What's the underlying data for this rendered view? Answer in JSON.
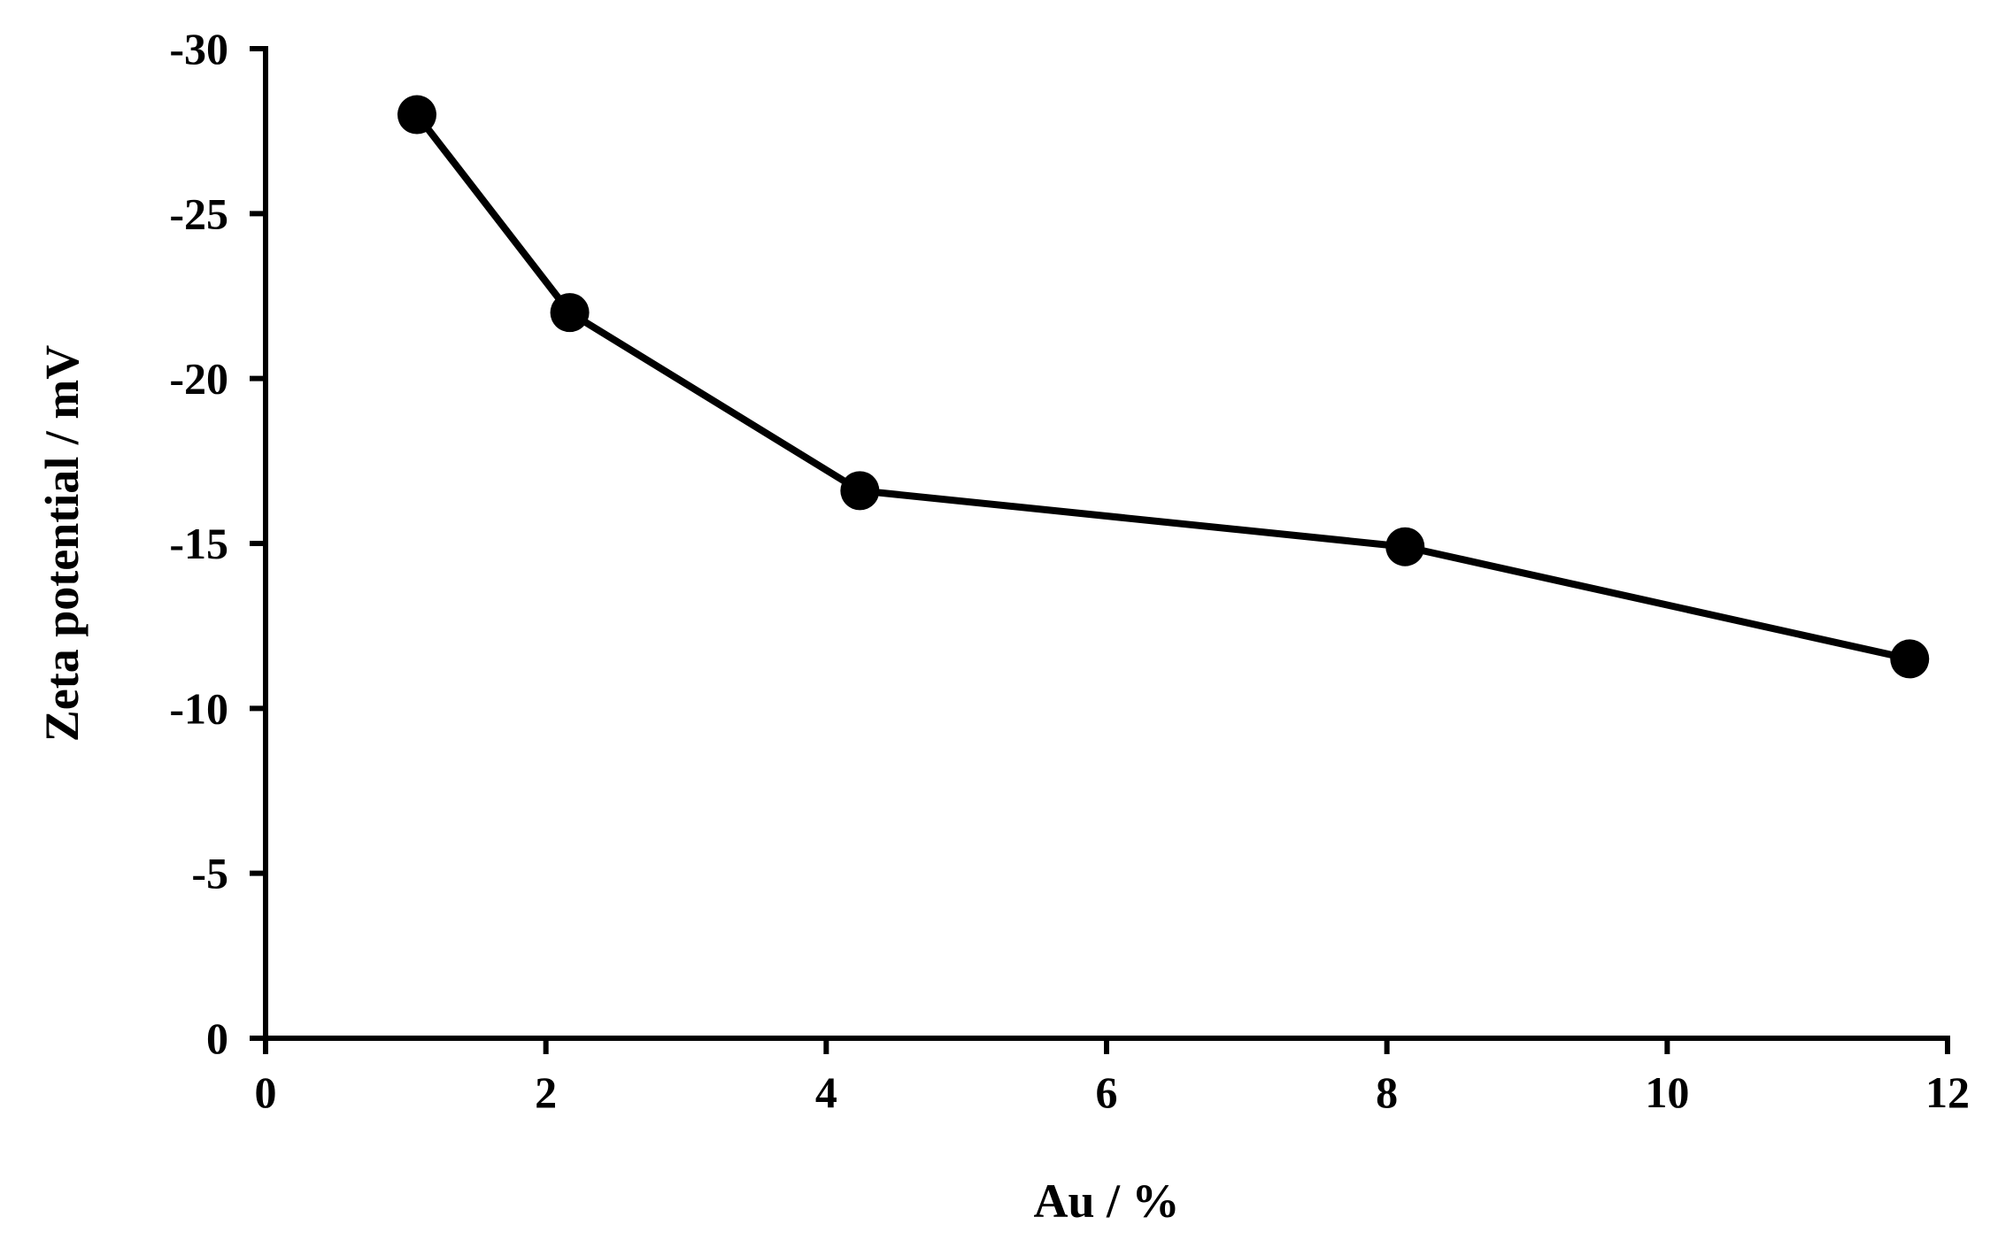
{
  "chart_data": {
    "type": "line",
    "title": "",
    "xlabel": "Au / %",
    "ylabel": "Zeta potential / mV",
    "xlim": [
      0,
      12
    ],
    "ylim": [
      0,
      -30
    ],
    "y_axis_reversed": true,
    "grid": false,
    "legend": "none",
    "x_ticks": [
      "0",
      "2",
      "4",
      "6",
      "8",
      "10",
      "12"
    ],
    "y_ticks": [
      "-30",
      "-25",
      "-20",
      "-15",
      "-10",
      "-5",
      "0"
    ],
    "series": [
      {
        "x": [
          1.08,
          2.17,
          4.24,
          8.13,
          11.73
        ],
        "y": [
          -28.0,
          -22.0,
          -16.6,
          -14.9,
          -11.5
        ],
        "color": "#000000",
        "marker": "circle"
      }
    ]
  }
}
